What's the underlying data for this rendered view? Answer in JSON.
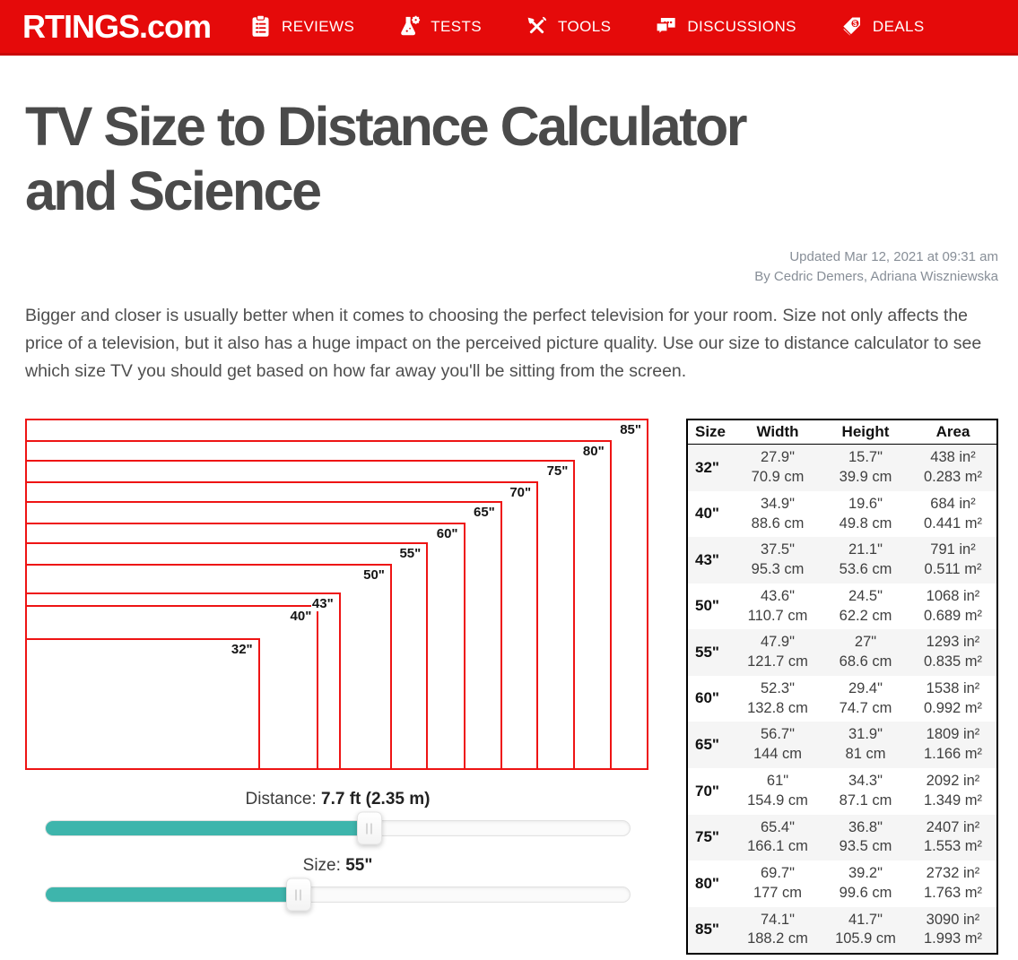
{
  "colors": {
    "header_red": "#e50a0a",
    "diagram_red": "#ee1414",
    "slider_teal": "#3eb5ac"
  },
  "header": {
    "logo": "RTINGS.com",
    "nav": [
      {
        "label": "REVIEWS",
        "icon": "clipboard-icon"
      },
      {
        "label": "TESTS",
        "icon": "flask-icon"
      },
      {
        "label": "TOOLS",
        "icon": "tools-icon"
      },
      {
        "label": "DISCUSSIONS",
        "icon": "speech-bubbles-icon"
      },
      {
        "label": "DEALS",
        "icon": "price-tag-icon"
      }
    ]
  },
  "article": {
    "title_lines": [
      "TV Size to Distance Calculator",
      "and Science"
    ],
    "updated": "Updated Mar 12, 2021 at 09:31 am",
    "byline": "By Cedric Demers, Adriana Wiszniewska",
    "intro": "Bigger and closer is usually better when it comes to choosing the perfect television for your room. Size not only affects the price of a television, but it also has a huge impact on the perceived picture quality. Use our size to distance calculator to see which size TV you should get based on how far away you'll be sitting from the screen."
  },
  "diagram": {
    "max_width_in": 74.1,
    "max_height_in": 41.7,
    "sizes": [
      {
        "label": "85\"",
        "width_in": 74.1,
        "height_in": 41.7
      },
      {
        "label": "80\"",
        "width_in": 69.7,
        "height_in": 39.2
      },
      {
        "label": "75\"",
        "width_in": 65.4,
        "height_in": 36.8
      },
      {
        "label": "70\"",
        "width_in": 61.0,
        "height_in": 34.3
      },
      {
        "label": "65\"",
        "width_in": 56.7,
        "height_in": 31.9
      },
      {
        "label": "60\"",
        "width_in": 52.3,
        "height_in": 29.4
      },
      {
        "label": "55\"",
        "width_in": 47.9,
        "height_in": 27.0
      },
      {
        "label": "50\"",
        "width_in": 43.6,
        "height_in": 24.5
      },
      {
        "label": "43\"",
        "width_in": 37.5,
        "height_in": 21.1
      },
      {
        "label": "40\"",
        "width_in": 34.9,
        "height_in": 19.6
      },
      {
        "label": "32\"",
        "width_in": 27.9,
        "height_in": 15.7
      }
    ]
  },
  "sliders": {
    "distance": {
      "label": "Distance: ",
      "value": "7.7 ft (2.35 m)",
      "fill_percent": 55.4
    },
    "size": {
      "label": "Size: ",
      "value": "55\"",
      "fill_percent": 43.3
    }
  },
  "table": {
    "columns": [
      "Size",
      "Width",
      "Height",
      "Area"
    ],
    "rows": [
      {
        "size": "32\"",
        "width": [
          "27.9\"",
          "70.9 cm"
        ],
        "height": [
          "15.7\"",
          "39.9 cm"
        ],
        "area": [
          "438 in²",
          "0.283 m²"
        ]
      },
      {
        "size": "40\"",
        "width": [
          "34.9\"",
          "88.6 cm"
        ],
        "height": [
          "19.6\"",
          "49.8 cm"
        ],
        "area": [
          "684 in²",
          "0.441 m²"
        ]
      },
      {
        "size": "43\"",
        "width": [
          "37.5\"",
          "95.3 cm"
        ],
        "height": [
          "21.1\"",
          "53.6 cm"
        ],
        "area": [
          "791 in²",
          "0.511 m²"
        ]
      },
      {
        "size": "50\"",
        "width": [
          "43.6\"",
          "110.7 cm"
        ],
        "height": [
          "24.5\"",
          "62.2 cm"
        ],
        "area": [
          "1068 in²",
          "0.689 m²"
        ]
      },
      {
        "size": "55\"",
        "width": [
          "47.9\"",
          "121.7 cm"
        ],
        "height": [
          "27\"",
          "68.6 cm"
        ],
        "area": [
          "1293 in²",
          "0.835 m²"
        ]
      },
      {
        "size": "60\"",
        "width": [
          "52.3\"",
          "132.8 cm"
        ],
        "height": [
          "29.4\"",
          "74.7 cm"
        ],
        "area": [
          "1538 in²",
          "0.992 m²"
        ]
      },
      {
        "size": "65\"",
        "width": [
          "56.7\"",
          "144 cm"
        ],
        "height": [
          "31.9\"",
          "81 cm"
        ],
        "area": [
          "1809 in²",
          "1.166 m²"
        ]
      },
      {
        "size": "70\"",
        "width": [
          "61\"",
          "154.9 cm"
        ],
        "height": [
          "34.3\"",
          "87.1 cm"
        ],
        "area": [
          "2092 in²",
          "1.349 m²"
        ]
      },
      {
        "size": "75\"",
        "width": [
          "65.4\"",
          "166.1 cm"
        ],
        "height": [
          "36.8\"",
          "93.5 cm"
        ],
        "area": [
          "2407 in²",
          "1.553 m²"
        ]
      },
      {
        "size": "80\"",
        "width": [
          "69.7\"",
          "177 cm"
        ],
        "height": [
          "39.2\"",
          "99.6 cm"
        ],
        "area": [
          "2732 in²",
          "1.763 m²"
        ]
      },
      {
        "size": "85\"",
        "width": [
          "74.1\"",
          "188.2 cm"
        ],
        "height": [
          "41.7\"",
          "105.9 cm"
        ],
        "area": [
          "3090 in²",
          "1.993 m²"
        ]
      }
    ]
  }
}
